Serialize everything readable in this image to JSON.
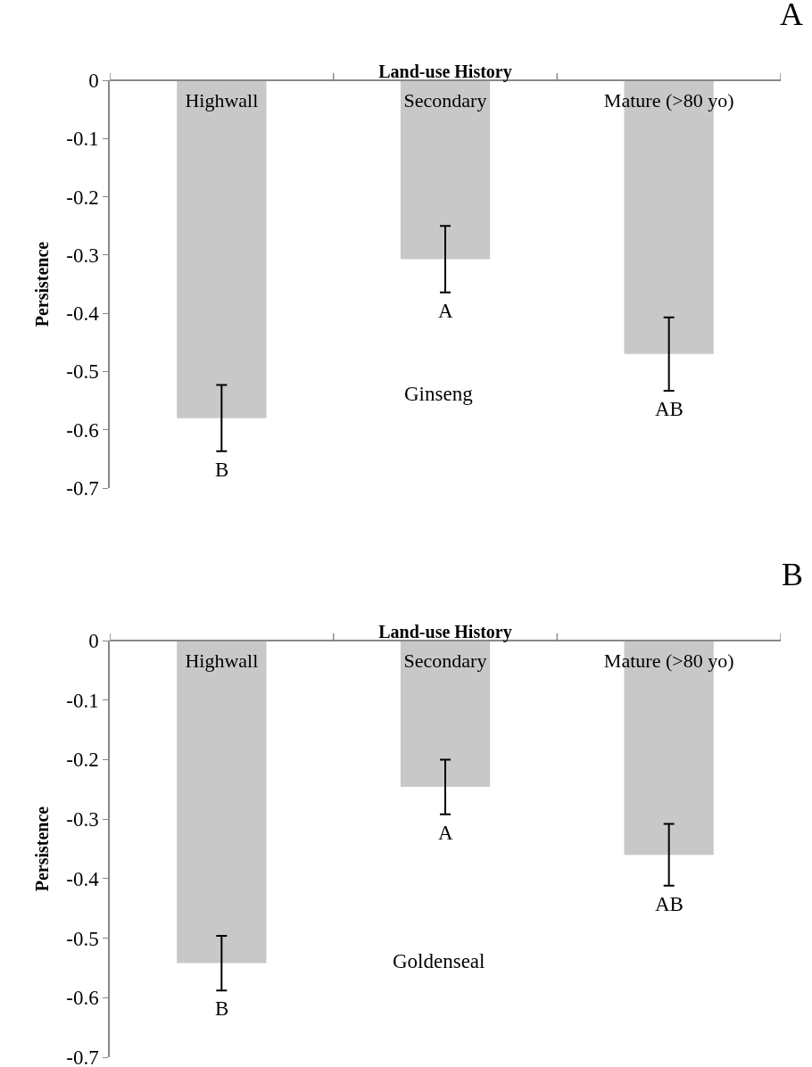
{
  "chart_data": [
    {
      "type": "bar",
      "title": "A",
      "xlabel": "Land-use History",
      "ylabel": "Persistence",
      "categories": [
        "Highwall",
        "Secondary",
        "Mature (>80 yo)"
      ],
      "values": [
        -0.58,
        -0.307,
        -0.47
      ],
      "errors": [
        0.057,
        0.057,
        0.063
      ],
      "color": "#c8c8c8",
      "ylim": [
        -0.7,
        0
      ],
      "yticks": [
        -0.7,
        -0.6,
        -0.5,
        -0.4,
        -0.3,
        -0.2,
        -0.1,
        0
      ],
      "annotations": [
        "Ginseng",
        "B",
        "A",
        "AB"
      ]
    },
    {
      "type": "bar",
      "title": "B",
      "xlabel": "Land-use History",
      "ylabel": "Persistence",
      "categories": [
        "Highwall",
        "Secondary",
        "Mature (>80 yo)"
      ],
      "values": [
        -0.542,
        -0.246,
        -0.36
      ],
      "errors": [
        0.046,
        0.046,
        0.052
      ],
      "color": "#c8c8c8",
      "ylim": [
        -0.7,
        0
      ],
      "yticks": [
        -0.7,
        -0.6,
        -0.5,
        -0.4,
        -0.3,
        -0.2,
        -0.1,
        0
      ],
      "annotations": [
        "Goldenseal",
        "B",
        "A",
        "AB"
      ]
    }
  ]
}
